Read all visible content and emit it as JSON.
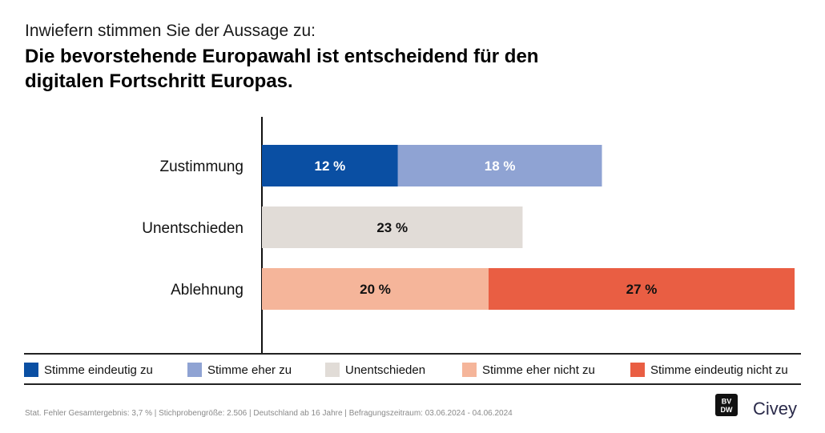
{
  "subtitle": "Inwiefern stimmen Sie der Aussage zu:",
  "title": "Die bevorstehende Europawahl ist entscheidend für den digitalen Fortschritt Europas.",
  "chart_data": {
    "type": "bar",
    "orientation": "horizontal",
    "stacked": true,
    "categories": [
      "Zustimmung",
      "Unentschieden",
      "Ablehnung"
    ],
    "series": [
      {
        "name": "Stimme eindeutig zu",
        "color": "#0a4fa3",
        "label_color": "#ffffff",
        "values": [
          12,
          null,
          null
        ]
      },
      {
        "name": "Stimme eher zu",
        "color": "#8fa3d3",
        "label_color": "#ffffff",
        "values": [
          18,
          null,
          null
        ]
      },
      {
        "name": "Unentschieden",
        "color": "#e1dcd7",
        "label_color": "#111111",
        "values": [
          null,
          23,
          null
        ]
      },
      {
        "name": "Stimme eher nicht zu",
        "color": "#f5b59a",
        "label_color": "#111111",
        "values": [
          null,
          null,
          20
        ]
      },
      {
        "name": "Stimme eindeutig nicht zu",
        "color": "#e95e43",
        "label_color": "#111111",
        "values": [
          null,
          null,
          27
        ]
      }
    ],
    "unit": "%",
    "xlim": [
      0,
      50
    ],
    "grid": false,
    "legend_position": "bottom"
  },
  "footer": "Stat. Fehler Gesamtergebnis: 3,7 % | Stichprobengröße: 2.506 | Deutschland ab 16 Jahre | Befragungszeitraum: 03.06.2024 - 04.06.2024",
  "brand": {
    "name": "Civey",
    "logo_text": "BVDW"
  }
}
